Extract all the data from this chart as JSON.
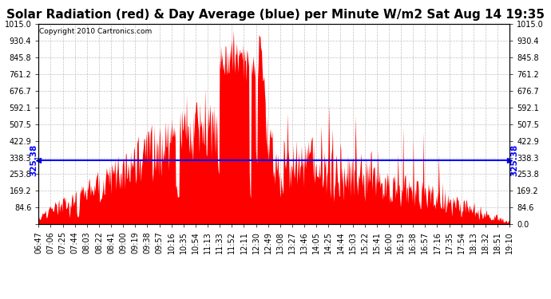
{
  "title": "Solar Radiation (red) & Day Average (blue) per Minute W/m2 Sat Aug 14 19:35",
  "copyright": "Copyright 2010 Cartronics.com",
  "ymin": 0.0,
  "ymax": 1015.0,
  "yticks": [
    0.0,
    84.6,
    169.2,
    253.8,
    338.3,
    422.9,
    507.5,
    592.1,
    676.7,
    761.2,
    845.8,
    930.4,
    1015.0
  ],
  "day_average": 325.38,
  "avg_label": "325.38",
  "fill_color": "#FF0000",
  "avg_line_color": "#0000FF",
  "background_color": "#FFFFFF",
  "grid_color": "#BBBBBB",
  "xtick_labels": [
    "06:47",
    "07:06",
    "07:25",
    "07:44",
    "08:03",
    "08:22",
    "08:41",
    "09:00",
    "09:19",
    "09:38",
    "09:57",
    "10:16",
    "10:35",
    "10:54",
    "11:13",
    "11:33",
    "11:52",
    "12:11",
    "12:30",
    "12:49",
    "13:08",
    "13:27",
    "13:46",
    "14:05",
    "14:25",
    "14:44",
    "15:03",
    "15:22",
    "15:41",
    "16:00",
    "16:19",
    "16:38",
    "16:57",
    "17:16",
    "17:35",
    "17:54",
    "18:13",
    "18:32",
    "18:51",
    "19:10"
  ],
  "title_fontsize": 11,
  "tick_fontsize": 7,
  "avg_label_fontsize": 7.5,
  "copyright_fontsize": 6.5
}
